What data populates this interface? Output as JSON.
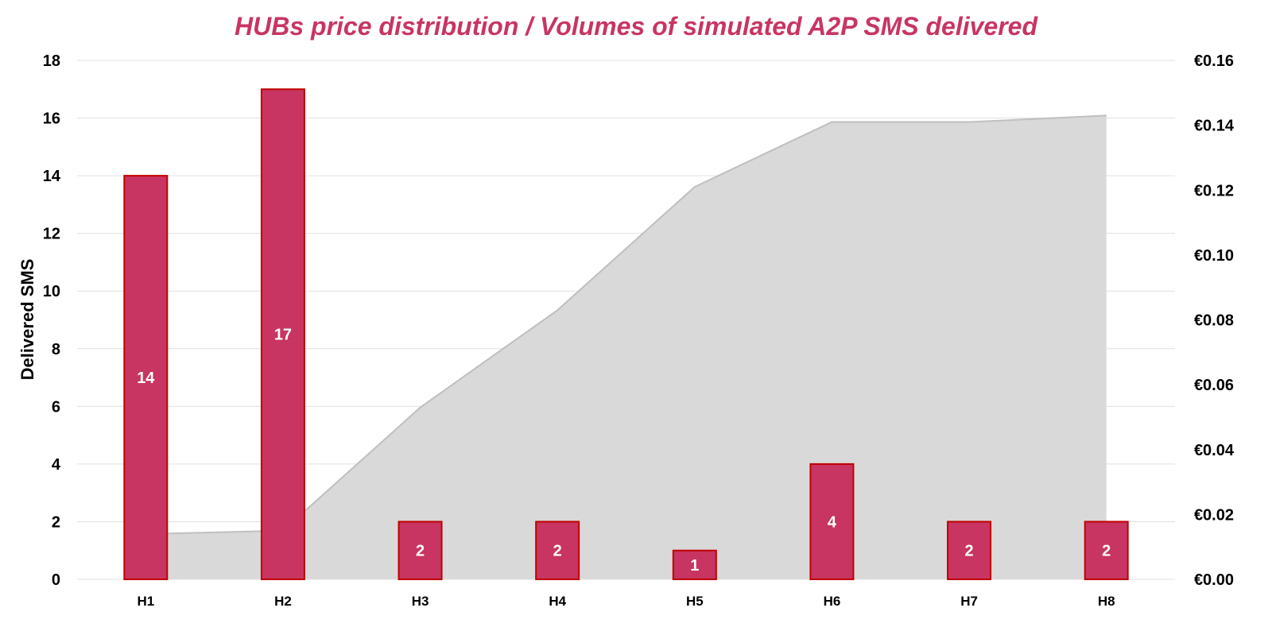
{
  "chart_data": {
    "type": "bar",
    "title": "HUBs price distribution / Volumes of simulated A2P SMS delivered",
    "ylabel": "Delivered SMS",
    "y2label": "",
    "categories": [
      "H1",
      "H2",
      "H3",
      "H4",
      "H5",
      "H6",
      "H7",
      "H8"
    ],
    "ylim": [
      0,
      18
    ],
    "yticks": [
      "0",
      "2",
      "4",
      "6",
      "8",
      "10",
      "12",
      "14",
      "16",
      "18"
    ],
    "y2lim": [
      0,
      0.16
    ],
    "y2ticks": [
      "€0.00",
      "€0.02",
      "€0.04",
      "€0.06",
      "€0.08",
      "€0.10",
      "€0.12",
      "€0.14",
      "€0.16"
    ],
    "grid": true,
    "legend": "none",
    "series": [
      {
        "type": "bar",
        "axis": "left",
        "values": [
          14,
          17,
          2,
          2,
          1,
          4,
          2,
          2
        ],
        "data_labels": [
          "14",
          "17",
          "2",
          "2",
          "1",
          "4",
          "2",
          "2"
        ]
      },
      {
        "type": "area",
        "axis": "right",
        "values": [
          0.014,
          0.015,
          0.053,
          0.083,
          0.121,
          0.141,
          0.141,
          0.143
        ]
      }
    ],
    "colors": {
      "bar_fill": "#c83562",
      "bar_stroke": "#c00000",
      "area_fill": "#d9d9d9",
      "area_stroke": "#bfbfbf",
      "title": "#c83562",
      "grid": "#e0e0e0"
    }
  }
}
